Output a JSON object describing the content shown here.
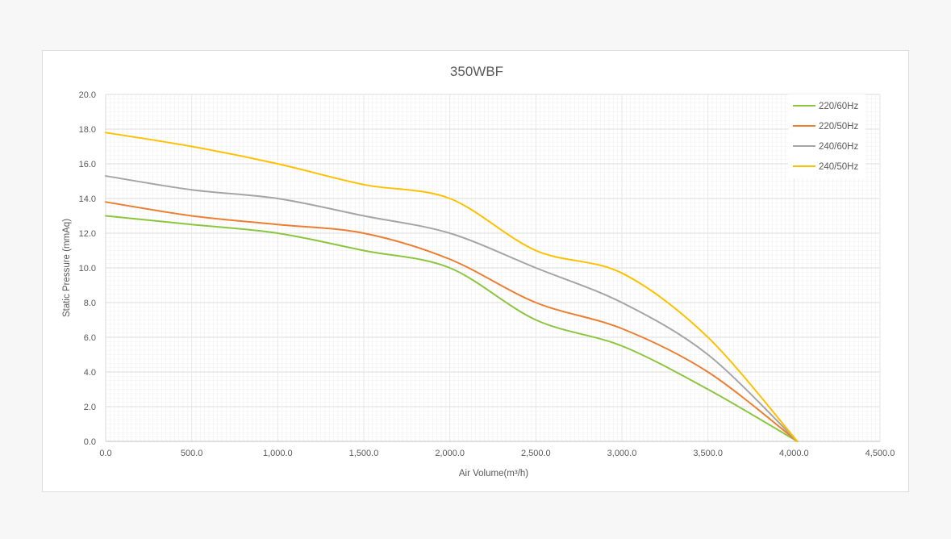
{
  "chart_data": {
    "type": "line",
    "title": "350WBF",
    "xlabel": "Air Volume(m³/h)",
    "ylabel": "Static Pressure (mmAq)",
    "xlim": [
      0,
      4500
    ],
    "ylim": [
      0,
      20
    ],
    "x_ticks": [
      0,
      500,
      1000,
      1500,
      2000,
      2500,
      3000,
      3500,
      4000,
      4500
    ],
    "x_tick_labels": [
      "0.0",
      "500.0",
      "1,000.0",
      "1,500.0",
      "2,000.0",
      "2,500.0",
      "3,000.0",
      "3,500.0",
      "4,000.0",
      "4,500.0"
    ],
    "y_ticks": [
      0,
      2,
      4,
      6,
      8,
      10,
      12,
      14,
      16,
      18,
      20
    ],
    "y_tick_labels": [
      "0.0",
      "2.0",
      "4.0",
      "6.0",
      "8.0",
      "10.0",
      "12.0",
      "14.0",
      "16.0",
      "18.0",
      "20.0"
    ],
    "grid": true,
    "legend": "top-right",
    "series": [
      {
        "name": "220/60Hz",
        "color": "#8cc63f",
        "x": [
          0,
          500,
          1000,
          1500,
          2000,
          2500,
          3000,
          3500,
          4020
        ],
        "y": [
          13.0,
          12.5,
          12.0,
          11.0,
          10.0,
          7.0,
          5.5,
          3.0,
          0.0
        ]
      },
      {
        "name": "220/50Hz",
        "color": "#ed7d31",
        "x": [
          0,
          500,
          1000,
          1500,
          2000,
          2500,
          3000,
          3500,
          4020
        ],
        "y": [
          13.8,
          13.0,
          12.5,
          12.0,
          10.5,
          8.0,
          6.5,
          4.0,
          0.0
        ]
      },
      {
        "name": "240/60Hz",
        "color": "#a5a5a5",
        "x": [
          0,
          500,
          1000,
          1500,
          2000,
          2500,
          3000,
          3500,
          4020
        ],
        "y": [
          15.3,
          14.5,
          14.0,
          13.0,
          12.0,
          10.0,
          8.0,
          5.0,
          0.0
        ]
      },
      {
        "name": "240/50Hz",
        "color": "#ffc000",
        "x": [
          0,
          500,
          1000,
          1500,
          2000,
          2500,
          3000,
          3500,
          4020
        ],
        "y": [
          17.8,
          17.0,
          16.0,
          14.8,
          14.0,
          11.0,
          9.7,
          6.0,
          0.0
        ]
      }
    ]
  }
}
